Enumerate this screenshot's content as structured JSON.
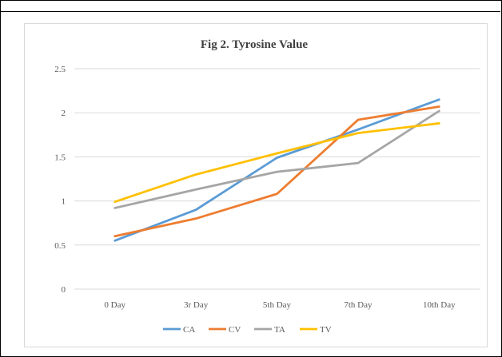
{
  "chart_data": {
    "type": "line",
    "title": "Fig 2. Tyrosine Value",
    "xlabel": "",
    "ylabel": "",
    "categories": [
      "0 Day",
      "3r Day",
      "5th Day",
      "7th Day",
      "10th Day"
    ],
    "ylim": [
      0,
      2.5
    ],
    "yticks": [
      "0",
      "0.5",
      "1",
      "1.5",
      "2",
      "2.5"
    ],
    "grid": true,
    "legend_position": "bottom",
    "series": [
      {
        "name": "CA",
        "color": "#5b9bd5",
        "values": [
          0.55,
          0.9,
          1.49,
          1.81,
          2.15
        ]
      },
      {
        "name": "CV",
        "color": "#ed7d31",
        "values": [
          0.6,
          0.8,
          1.08,
          1.92,
          2.07
        ]
      },
      {
        "name": "TA",
        "color": "#a5a5a5",
        "values": [
          0.92,
          1.13,
          1.33,
          1.43,
          2.02
        ]
      },
      {
        "name": "TV",
        "color": "#ffc000",
        "values": [
          0.99,
          1.3,
          1.54,
          1.77,
          1.88
        ]
      }
    ]
  }
}
